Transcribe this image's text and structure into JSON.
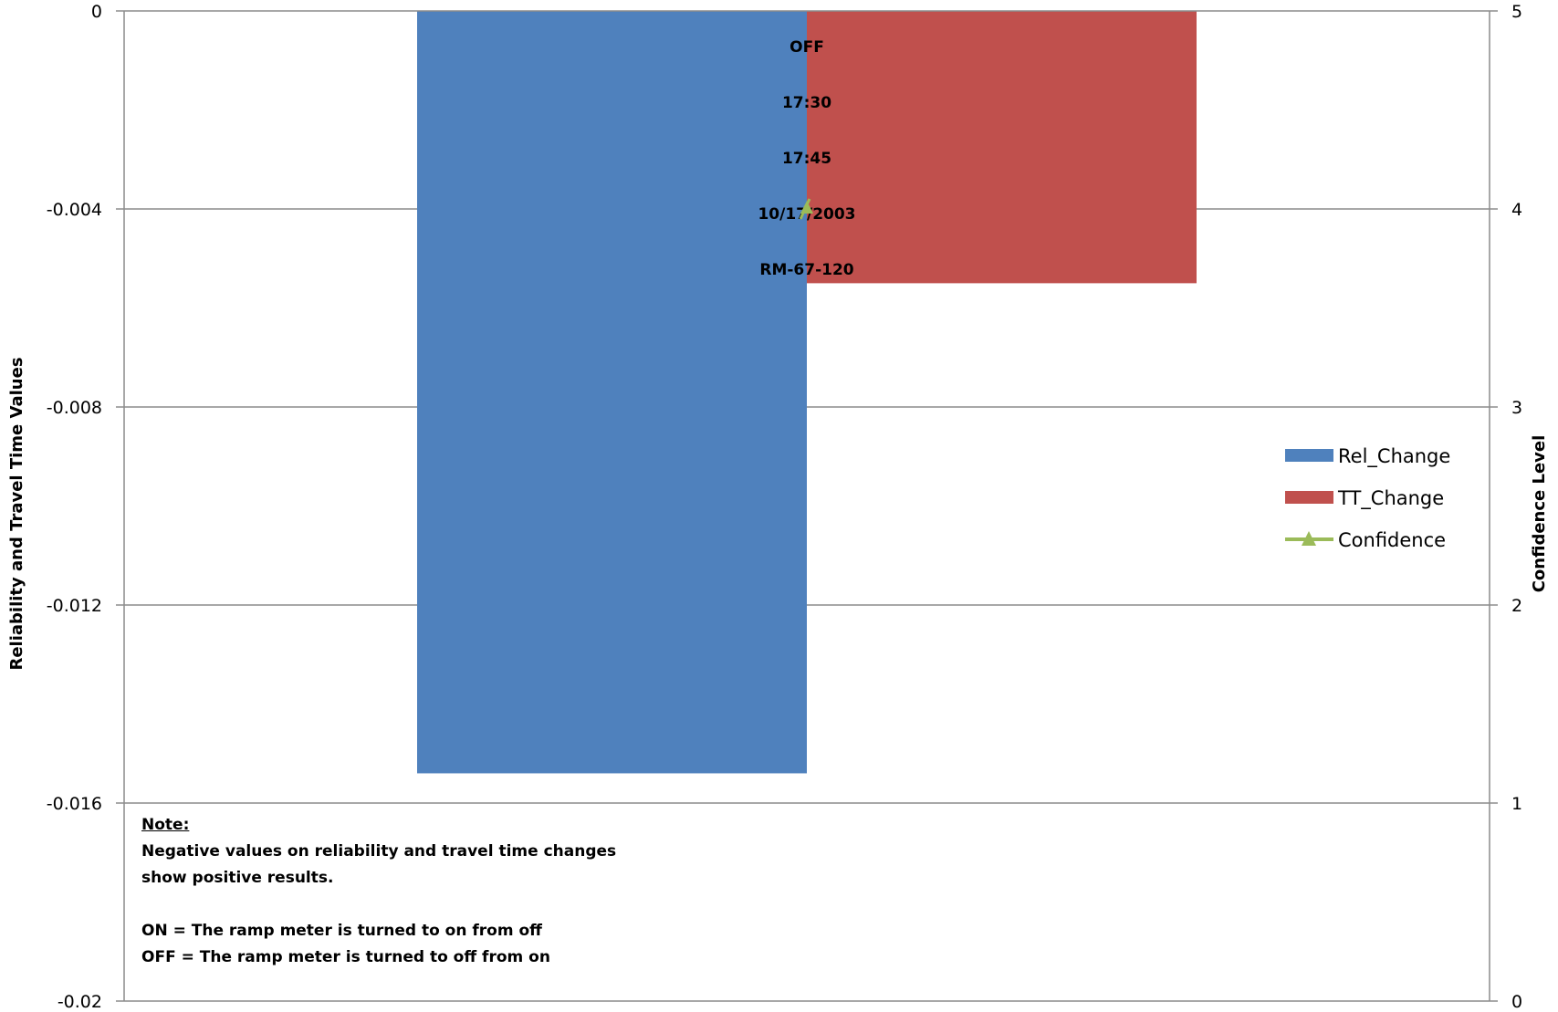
{
  "chart_data": {
    "type": "bar",
    "category_labels": [
      "OFF",
      "17:30",
      "17:45",
      "10/17/2003",
      "RM-67-120"
    ],
    "series": [
      {
        "name": "Rel_Change",
        "type": "bar",
        "axis": "left",
        "values": [
          -0.0154
        ],
        "color": "#4f81bd"
      },
      {
        "name": "TT_Change",
        "type": "bar",
        "axis": "left",
        "values": [
          -0.0055
        ],
        "color": "#c0504d"
      },
      {
        "name": "Confidence",
        "type": "line",
        "axis": "right",
        "values": [
          4
        ],
        "color": "#9bbb59",
        "marker": "triangle"
      }
    ],
    "y_left": {
      "label": "Reliability and Travel Time Values",
      "min": -0.02,
      "max": 0,
      "ticks": [
        "0",
        "-0.004",
        "-0.008",
        "-0.012",
        "-0.016",
        "-0.02"
      ]
    },
    "y_right": {
      "label": "Confidence  Level",
      "min": 0,
      "max": 5,
      "ticks": [
        "5",
        "4",
        "3",
        "2",
        "1",
        "0"
      ]
    },
    "grid": true,
    "legend_position": "right"
  },
  "note": {
    "title": "Note:",
    "line1": "Negative values on reliability and travel time changes",
    "line2": "show positive results.",
    "line3": "ON = The ramp meter is turned to on from off",
    "line4": "OFF = The ramp meter is turned to off from on"
  }
}
